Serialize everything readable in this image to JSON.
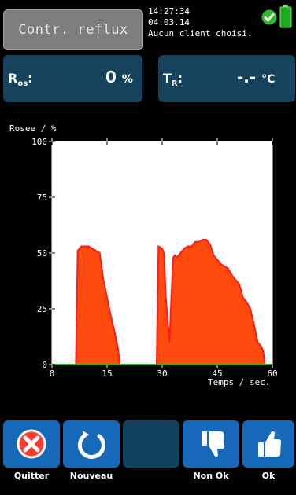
{
  "header": {
    "mode_button": "Contr. reflux",
    "time": "14:27:34",
    "date": "04.03.14",
    "client": "Aucun client choisi.",
    "status_icon": "check-icon",
    "battery_icon": "battery-icon"
  },
  "readouts": {
    "left": {
      "label": "R",
      "sub": "os",
      "value": "0",
      "unit": "%"
    },
    "right": {
      "label": "T",
      "sub": "R",
      "value": "-.-",
      "unit": "°C"
    }
  },
  "chart_data": {
    "type": "area",
    "ylabel": "Rosee / %",
    "xlabel": "Temps / sec.",
    "xlim": [
      0,
      60
    ],
    "ylim": [
      0,
      100
    ],
    "xticks": [
      "0",
      "15",
      "30",
      "45",
      "60"
    ],
    "yticks": [
      "0",
      "25",
      "50",
      "75",
      "100"
    ],
    "x": [
      0,
      6.5,
      7,
      8,
      10,
      13,
      14,
      15,
      16,
      17,
      18,
      18.5,
      19,
      28.5,
      29,
      30,
      30.5,
      31,
      32,
      32.5,
      33,
      33.5,
      34,
      35,
      36,
      37,
      38,
      39,
      40,
      41,
      42,
      43,
      44,
      45,
      46,
      47,
      48,
      49,
      50,
      51,
      52,
      53,
      54,
      55,
      56,
      57,
      57.5,
      58,
      60
    ],
    "values": [
      0,
      0,
      51,
      53,
      53,
      50,
      38,
      30,
      22,
      15,
      7,
      0,
      0,
      0,
      53,
      52,
      50,
      30,
      10,
      30,
      48,
      49,
      48,
      50,
      52,
      53,
      53,
      55,
      55,
      56,
      56,
      54,
      49,
      47,
      45,
      44,
      43,
      40,
      38,
      36,
      30,
      28,
      25,
      18,
      10,
      8,
      6,
      0,
      0
    ],
    "fill_color": "#ff4b0d",
    "line_color": "#ff1a1a",
    "baseline_color": "#17c11d"
  },
  "footer": {
    "quit": {
      "label": "Quitter",
      "icon": "close-icon"
    },
    "new": {
      "label": "Nouveau",
      "icon": "refresh-icon"
    },
    "empty": {
      "label": ""
    },
    "notok": {
      "label": "Non Ok",
      "icon": "thumbs-down-icon"
    },
    "ok": {
      "label": "Ok",
      "icon": "thumbs-up-icon"
    }
  }
}
